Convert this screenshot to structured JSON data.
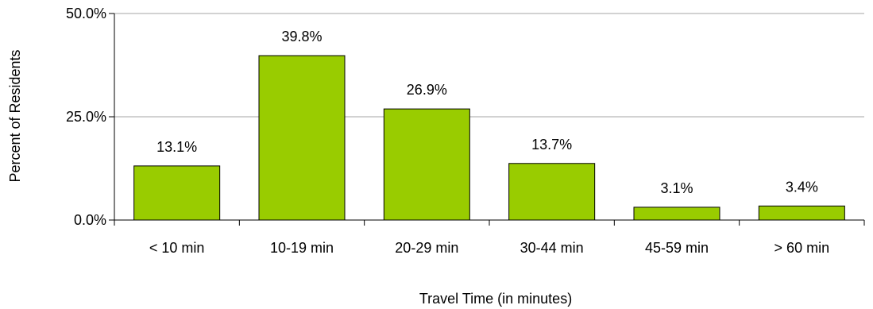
{
  "chart_data": {
    "type": "bar",
    "title": "",
    "xlabel": "Travel Time (in minutes)",
    "ylabel": "Percent of Residents",
    "categories": [
      "< 10 min",
      "10-19 min",
      "20-29 min",
      "30-44 min",
      "45-59 min",
      "> 60 min"
    ],
    "values": [
      13.1,
      39.8,
      26.9,
      13.7,
      3.1,
      3.4
    ],
    "data_labels": [
      "13.1%",
      "39.8%",
      "26.9%",
      "13.7%",
      "3.1%",
      "3.4%"
    ],
    "ylim": [
      0,
      50
    ],
    "yticks": [
      0,
      25,
      50
    ],
    "ytick_labels": [
      "0.0%",
      "25.0%",
      "50.0%"
    ],
    "grid": true,
    "legend": "none",
    "bar_color": "#99cc00",
    "bar_edge_color": "#000000",
    "grid_color": "#a6a6a6"
  }
}
